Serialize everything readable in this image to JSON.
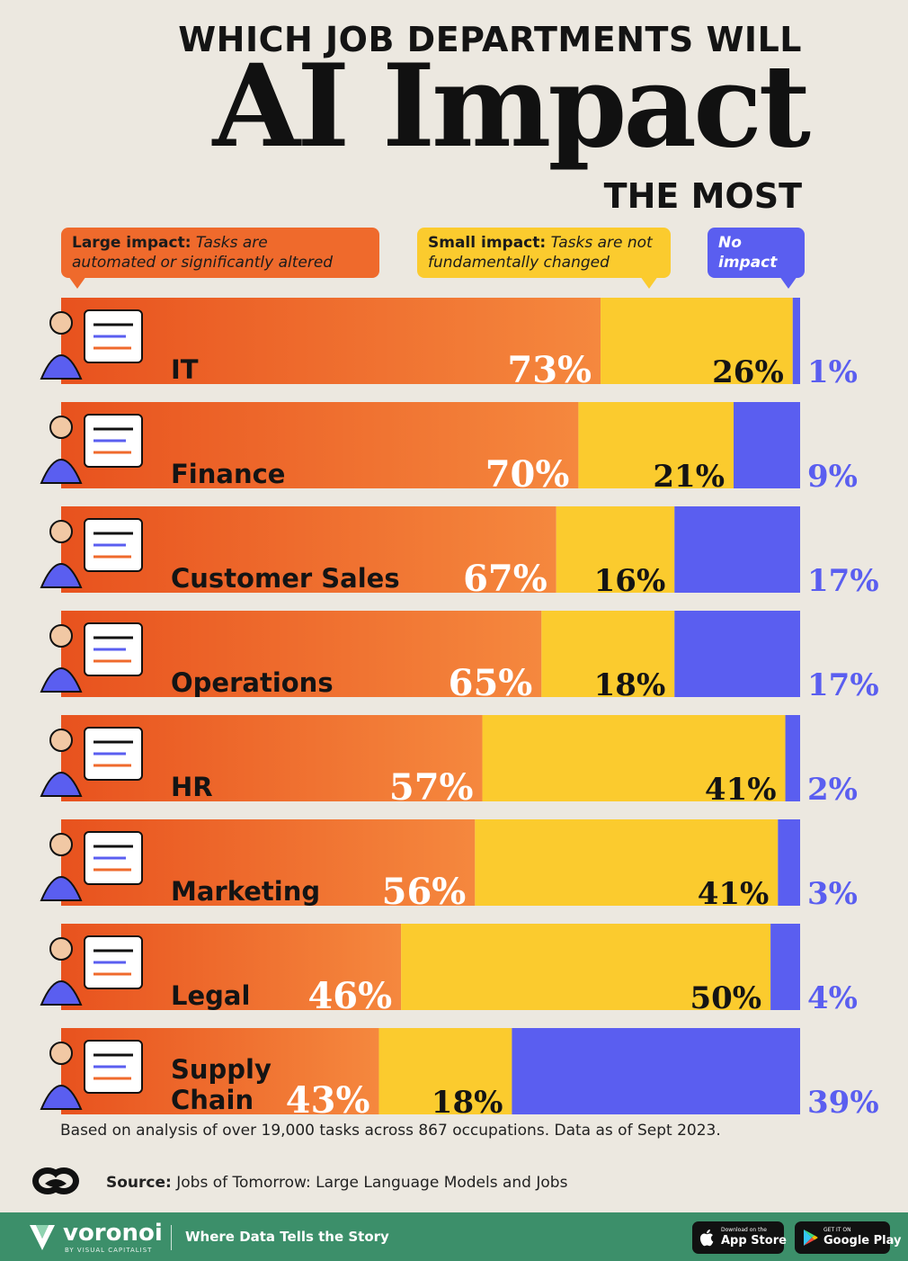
{
  "header": {
    "line1": "WHICH JOB DEPARTMENTS WILL",
    "line2": "AI Impact",
    "line3": "THE MOST"
  },
  "legend": {
    "large_label": "Large impact:",
    "large_desc_1": "Tasks are",
    "large_desc_2": "automated or significantly altered",
    "small_label": "Small impact:",
    "small_desc_1": "Tasks are not",
    "small_desc_2": "fundamentally changed",
    "none_label": "No impact"
  },
  "colors": {
    "large": "#ef6a2c",
    "small": "#fbcb2e",
    "none": "#5a5ef0",
    "background": "#ece8e0"
  },
  "chart_data": {
    "type": "bar",
    "orientation": "horizontal",
    "stacked": true,
    "unit": "%",
    "categories": [
      "IT",
      "Finance",
      "Customer Sales",
      "Operations",
      "HR",
      "Marketing",
      "Legal",
      "Supply Chain"
    ],
    "series": [
      {
        "name": "Large impact",
        "values": [
          73,
          70,
          67,
          65,
          57,
          56,
          46,
          43
        ]
      },
      {
        "name": "Small impact",
        "values": [
          26,
          21,
          16,
          18,
          41,
          41,
          50,
          18
        ]
      },
      {
        "name": "No impact",
        "values": [
          1,
          9,
          17,
          17,
          2,
          3,
          4,
          39
        ]
      }
    ],
    "labels": {
      "large": [
        "73%",
        "70%",
        "67%",
        "65%",
        "57%",
        "56%",
        "46%",
        "43%"
      ],
      "small": [
        "26%",
        "21%",
        "16%",
        "18%",
        "41%",
        "41%",
        "50%",
        "18%"
      ],
      "none": [
        "1%",
        "9%",
        "17%",
        "17%",
        "2%",
        "3%",
        "4%",
        "39%"
      ]
    },
    "xlim": [
      0,
      100
    ]
  },
  "footer": {
    "note": "Based on analysis of over 19,000 tasks across 867 occupations. Data as of Sept 2023.",
    "source_label": "Source:",
    "source_text": "Jobs of Tomorrow: Large Language Models and Jobs"
  },
  "brand": {
    "name": "voronoi",
    "sub": "BY VISUAL CAPITALIST",
    "tagline": "Where Data Tells the Story",
    "app_store_small": "Download on the",
    "app_store_big": "App Store",
    "google_small": "GET IT ON",
    "google_big": "Google Play"
  }
}
